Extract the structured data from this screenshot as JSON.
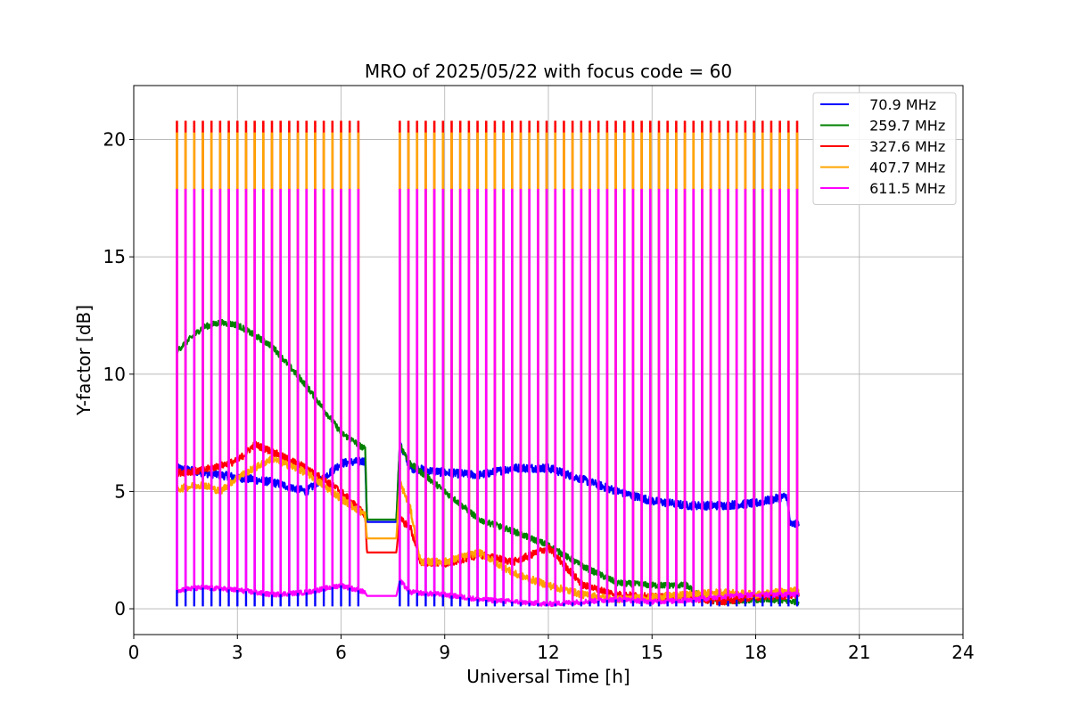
{
  "chart_data": {
    "type": "line",
    "title": "MRO of 2025/05/22 with focus code = 60",
    "xlabel": "Universal Time [h]",
    "ylabel": "Y-factor [dB]",
    "xlim": [
      0,
      24
    ],
    "ylim": [
      -1.1,
      22.3
    ],
    "xticks": [
      0,
      3,
      6,
      9,
      12,
      15,
      18,
      21,
      24
    ],
    "xtick_labels": [
      "0",
      "3",
      "6",
      "9",
      "12",
      "15",
      "18",
      "21",
      "24"
    ],
    "yticks": [
      0,
      5,
      10,
      15,
      20
    ],
    "ytick_labels": [
      "0",
      "5",
      "10",
      "15",
      "20"
    ],
    "grid": true,
    "legend_position": "top-right",
    "segments": [
      [
        1.25,
        6.7
      ],
      [
        7.7,
        19.25
      ]
    ],
    "gap_times": [
      6.75,
      7.6
    ],
    "spikes": {
      "period_h": 0.25,
      "peaks": [
        {
          "series": "327.6 MHz",
          "value": 20.8
        },
        {
          "series": "407.7 MHz",
          "value": 20.3
        },
        {
          "series": "611.5 MHz",
          "value": 17.9
        }
      ],
      "dips": {
        "series": "70.9 MHz",
        "value": 0.1
      }
    },
    "series": [
      {
        "name": " 70.9 MHz",
        "color": "#0000ff",
        "x": [
          1.25,
          2,
          3,
          4,
          5,
          6,
          6.7,
          6.75,
          7.6,
          7.7,
          8,
          9,
          10,
          11,
          12,
          13,
          14,
          15,
          16,
          17,
          18,
          18.9,
          19,
          19.25
        ],
        "y": [
          6.0,
          5.8,
          5.6,
          5.4,
          5.0,
          6.2,
          6.3,
          3.7,
          3.7,
          7.0,
          6.0,
          5.8,
          5.7,
          6.0,
          6.0,
          5.5,
          5.0,
          4.6,
          4.4,
          4.4,
          4.5,
          4.8,
          3.6,
          3.6
        ]
      },
      {
        "name": " 259.7 MHz",
        "color": "#008000",
        "x": [
          1.25,
          2,
          2.5,
          3,
          4,
          5,
          6,
          6.7,
          6.75,
          7.6,
          7.7,
          8,
          9,
          10,
          11,
          12,
          13,
          14,
          15,
          16,
          16.5,
          17,
          18,
          19.25
        ],
        "y": [
          11.0,
          12.0,
          12.2,
          12.1,
          11.2,
          9.5,
          7.5,
          6.8,
          3.8,
          3.8,
          7.0,
          6.2,
          5.0,
          3.8,
          3.3,
          2.7,
          1.8,
          1.1,
          1.0,
          1.0,
          0.4,
          0.3,
          0.4,
          0.3
        ]
      },
      {
        "name": " 327.6 MHz",
        "color": "#ff0000",
        "x": [
          1.25,
          2,
          3,
          3.5,
          4,
          5,
          6,
          6.7,
          6.75,
          7.6,
          7.7,
          8,
          8.3,
          9,
          10,
          11,
          12,
          13,
          14,
          15,
          16,
          17,
          18,
          19.25
        ],
        "y": [
          5.8,
          5.9,
          6.3,
          7.0,
          6.7,
          6.0,
          5.0,
          4.0,
          2.4,
          2.4,
          3.8,
          3.5,
          2.0,
          1.9,
          2.3,
          2.0,
          2.6,
          1.0,
          0.6,
          0.5,
          0.5,
          0.3,
          0.5,
          0.6
        ]
      },
      {
        "name": " 407.7 MHz",
        "color": "#ffa500",
        "x": [
          1.25,
          2,
          2.5,
          3,
          4,
          5,
          6,
          6.7,
          6.75,
          7.6,
          7.7,
          8,
          8.3,
          9,
          10,
          11,
          12,
          13,
          14,
          15,
          16,
          17,
          18,
          19.25
        ],
        "y": [
          5.1,
          5.3,
          5.0,
          5.6,
          6.4,
          5.8,
          4.7,
          4.0,
          3.0,
          3.0,
          5.4,
          4.3,
          2.0,
          2.0,
          2.4,
          1.5,
          1.0,
          0.6,
          0.4,
          0.5,
          0.6,
          0.7,
          0.6,
          0.8
        ]
      },
      {
        "name": " 611.5 MHz",
        "color": "#ff00ff",
        "x": [
          1.25,
          2,
          3,
          4,
          5,
          6,
          6.7,
          6.75,
          7.6,
          7.7,
          8,
          9,
          10,
          11,
          12,
          13,
          14,
          15,
          16,
          17,
          18,
          19.25
        ],
        "y": [
          0.8,
          0.9,
          0.8,
          0.6,
          0.7,
          1.0,
          0.7,
          0.55,
          0.55,
          1.2,
          0.7,
          0.6,
          0.4,
          0.3,
          0.2,
          0.3,
          0.4,
          0.3,
          0.35,
          0.5,
          0.6,
          0.6
        ]
      }
    ]
  }
}
